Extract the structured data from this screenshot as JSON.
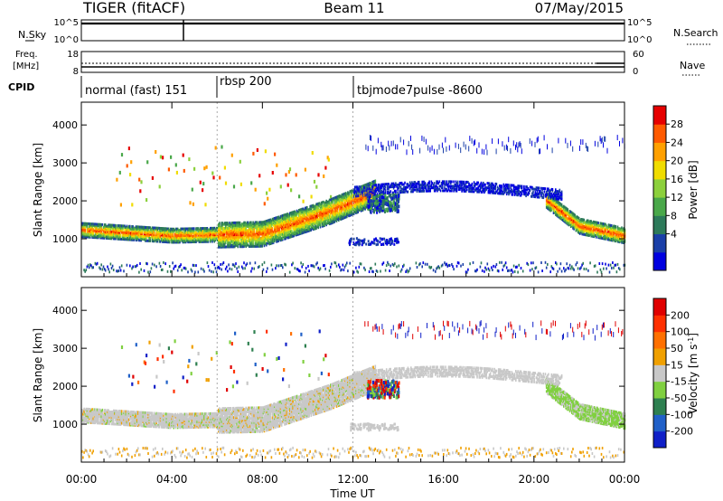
{
  "header": {
    "radar": "TIGER (fitACF)",
    "beam": "Beam 11",
    "date": "07/May/2015"
  },
  "top_panels": {
    "nsky": {
      "label": "N.Sky",
      "left_ticks": [
        "10^5",
        "10^0"
      ],
      "right_ticks": [
        "10^5",
        "10^0"
      ],
      "right_label": "N.Search"
    },
    "freq": {
      "label_lines": [
        "Freq.",
        "[MHz]"
      ],
      "left_ticks": [
        "18",
        "8"
      ],
      "right_ticks": [
        "60",
        "0"
      ],
      "right_label": "Nave"
    },
    "cpid": {
      "label": "CPID",
      "segments": [
        {
          "name": "normal (fast) 151",
          "start_hour": 0
        },
        {
          "name": "rbsp 200",
          "start_hour": 6
        },
        {
          "name": "tbjmode7pulse -8600",
          "start_hour": 12
        }
      ]
    }
  },
  "chart_data": [
    {
      "type": "heatmap",
      "name": "Power",
      "ylabel": "Slant Range [km]",
      "yticks": [
        1000,
        2000,
        3000,
        4000
      ],
      "ylim": [
        0,
        4600
      ],
      "xlim_hours": [
        0,
        24
      ],
      "colorbar": {
        "label": "Power [dB]",
        "ticks": [
          "28",
          "24",
          "20",
          "16",
          "12",
          "8",
          "4"
        ],
        "range": [
          0,
          32
        ],
        "colors": [
          "#0000e0",
          "#1a3fa8",
          "#2d7a5a",
          "#4aa84a",
          "#8cd03c",
          "#f0dc00",
          "#ffa000",
          "#ff5a00",
          "#e60000"
        ]
      },
      "features": [
        {
          "desc": "main ionospheric band",
          "t": [
            0,
            4,
            8,
            11,
            13
          ],
          "range_km": [
            1200,
            1050,
            1100,
            1700,
            2200
          ],
          "power_db": 22
        },
        {
          "desc": "late band",
          "t": [
            20.5,
            22,
            24
          ],
          "range_km": [
            2000,
            1300,
            1050
          ],
          "power_db": 20
        },
        {
          "desc": "high range echoes",
          "t": [
            12,
            16,
            20,
            21
          ],
          "range_km": [
            2200,
            2300,
            2300,
            1800
          ],
          "power_db": 8
        }
      ]
    },
    {
      "type": "heatmap",
      "name": "Velocity",
      "ylabel": "Slant Range [km]",
      "yticks": [
        1000,
        2000,
        3000,
        4000
      ],
      "ylim": [
        0,
        4600
      ],
      "xlim_hours": [
        0,
        24
      ],
      "colorbar": {
        "label": "Velocity [m s^-1]",
        "ticks": [
          "200",
          "100",
          "50",
          "15",
          "-15",
          "-50",
          "-100",
          "-200"
        ],
        "colors": [
          "#1020c8",
          "#2060c8",
          "#2e8050",
          "#80d040",
          "#c8c8c8",
          "#f0a000",
          "#ff7000",
          "#ff3000",
          "#e00000"
        ]
      }
    }
  ],
  "x_axis": {
    "ticks": [
      "00:00",
      "04:00",
      "08:00",
      "12:00",
      "16:00",
      "20:00",
      "00:00"
    ],
    "label": "Time UT"
  }
}
